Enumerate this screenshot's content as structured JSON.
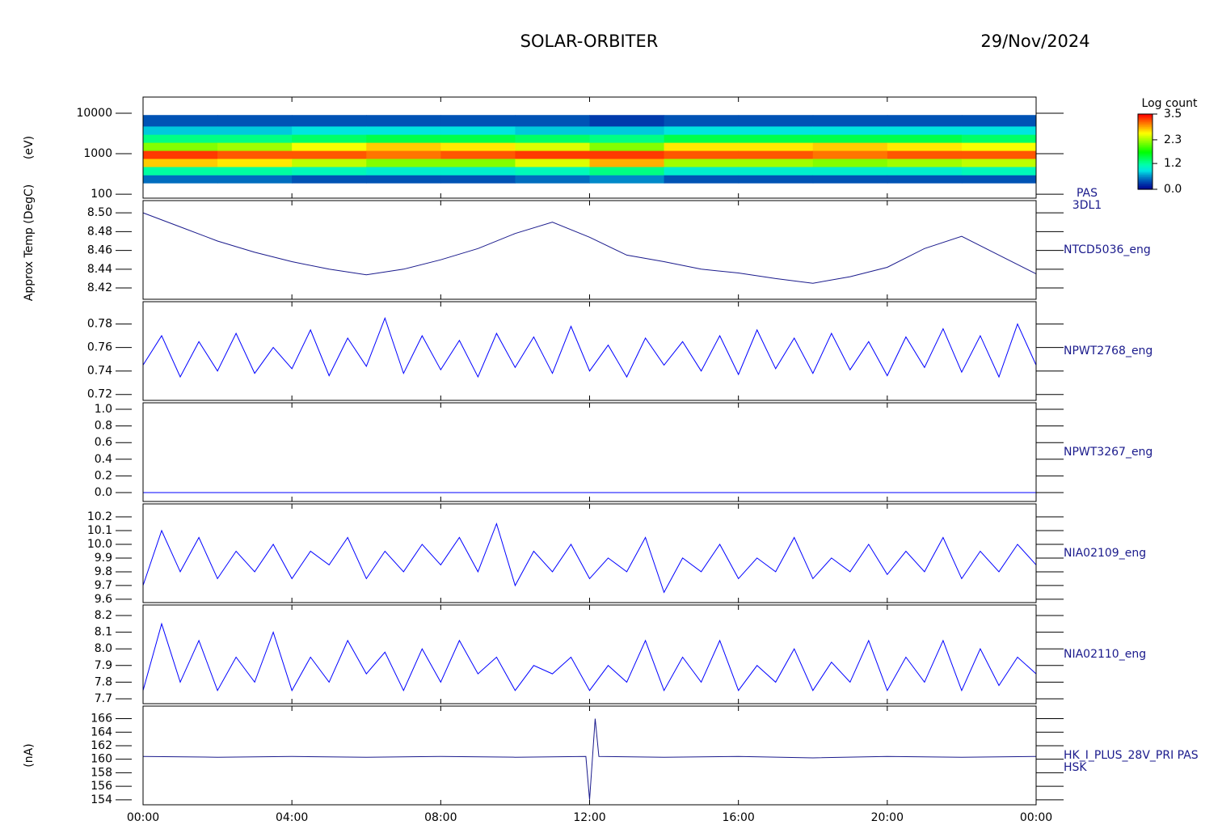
{
  "header": {
    "title": "SOLAR-ORBITER",
    "date": "29/Nov/2024"
  },
  "chart_data": [
    {
      "type": "heatmap",
      "log": true,
      "ylabel": "(eV)",
      "labels": [
        "PAS",
        "3DL1"
      ],
      "ylim": [
        80,
        25000
      ],
      "yticks": [
        100,
        1000,
        10000
      ],
      "time_bins": [
        0,
        2,
        4,
        6,
        8,
        10,
        12,
        14,
        16,
        18,
        20,
        22,
        24
      ],
      "energy_bins": [
        190,
        300,
        480,
        760,
        1200,
        1900,
        3000,
        4800,
        9000
      ],
      "values": [
        [
          0.5,
          1.2,
          2.8,
          3.3,
          2.2,
          1.3,
          0.8,
          0.4
        ],
        [
          0.5,
          1.2,
          2.7,
          3.2,
          2.3,
          1.3,
          0.8,
          0.4
        ],
        [
          0.4,
          1.1,
          2.4,
          3.2,
          2.6,
          1.4,
          0.9,
          0.4
        ],
        [
          0.4,
          1.0,
          2.2,
          3.1,
          2.8,
          1.5,
          0.9,
          0.4
        ],
        [
          0.4,
          1.0,
          2.2,
          3.2,
          2.7,
          1.5,
          0.9,
          0.4
        ],
        [
          0.5,
          1.1,
          2.5,
          3.3,
          2.5,
          1.4,
          0.8,
          0.4
        ],
        [
          0.6,
          1.3,
          2.9,
          3.3,
          2.2,
          1.3,
          0.8,
          0.3
        ],
        [
          0.4,
          1.0,
          2.3,
          3.2,
          2.7,
          1.5,
          0.9,
          0.4
        ],
        [
          0.4,
          1.0,
          2.3,
          3.2,
          2.7,
          1.5,
          0.9,
          0.4
        ],
        [
          0.4,
          1.0,
          2.2,
          3.1,
          2.8,
          1.5,
          0.9,
          0.4
        ],
        [
          0.4,
          1.0,
          2.3,
          3.2,
          2.7,
          1.5,
          0.9,
          0.4
        ],
        [
          0.4,
          1.1,
          2.4,
          3.2,
          2.6,
          1.4,
          0.9,
          0.4
        ]
      ],
      "colorbar_label": "Log count",
      "clim": [
        0,
        3.5
      ],
      "cticks": [
        {
          "value": 0,
          "label": "0.0"
        },
        1.2,
        2.3,
        3.5
      ]
    },
    {
      "type": "line",
      "ylabel": "Approx Temp (DegC)",
      "labels": [
        "NTCD5036_eng"
      ],
      "color": "#1a1a8c",
      "ylim": [
        8.408,
        8.513
      ],
      "yticks": [
        8.42,
        8.44,
        8.46,
        8.48,
        {
          "value": 8.5,
          "label": "8.50"
        }
      ],
      "x": [
        0,
        1,
        2,
        3,
        4,
        5,
        6,
        7,
        8,
        9,
        10,
        11,
        12,
        13,
        14,
        15,
        16,
        17,
        18,
        19,
        20,
        21,
        22,
        23,
        24
      ],
      "values": [
        8.5,
        8.485,
        8.47,
        8.458,
        8.448,
        8.44,
        8.434,
        8.44,
        8.45,
        8.462,
        8.478,
        8.49,
        8.474,
        8.455,
        8.448,
        8.44,
        8.436,
        8.43,
        8.425,
        8.432,
        8.442,
        8.462,
        8.475,
        8.455,
        8.435
      ]
    },
    {
      "type": "line",
      "labels": [
        "NPWT2768_eng"
      ],
      "color": "#0000ff",
      "ylim": [
        0.715,
        0.799
      ],
      "yticks": [
        0.72,
        0.74,
        0.76,
        0.78
      ],
      "x": [
        0,
        0.5,
        1,
        1.5,
        2,
        2.5,
        3,
        3.5,
        4,
        4.5,
        5,
        5.5,
        6,
        6.5,
        7,
        7.5,
        8,
        8.5,
        9,
        9.5,
        10,
        10.5,
        11,
        11.5,
        12,
        12.5,
        13,
        13.5,
        14,
        14.5,
        15,
        15.5,
        16,
        16.5,
        17,
        17.5,
        18,
        18.5,
        19,
        19.5,
        20,
        20.5,
        21,
        21.5,
        22,
        22.5,
        23,
        23.5,
        24
      ],
      "values": [
        0.745,
        0.77,
        0.735,
        0.765,
        0.74,
        0.772,
        0.738,
        0.76,
        0.742,
        0.775,
        0.736,
        0.768,
        0.744,
        0.785,
        0.738,
        0.77,
        0.741,
        0.766,
        0.735,
        0.772,
        0.743,
        0.769,
        0.738,
        0.778,
        0.74,
        0.762,
        0.735,
        0.768,
        0.745,
        0.765,
        0.74,
        0.77,
        0.737,
        0.775,
        0.742,
        0.768,
        0.738,
        0.772,
        0.741,
        0.765,
        0.736,
        0.769,
        0.743,
        0.776,
        0.739,
        0.77,
        0.735,
        0.78,
        0.745
      ]
    },
    {
      "type": "line",
      "labels": [
        "NPWT3267_eng"
      ],
      "color": "#0000ff",
      "ylim": [
        -0.107,
        1.078
      ],
      "yticks": [
        {
          "value": 0,
          "label": "0.0"
        },
        0.2,
        0.4,
        0.6,
        0.8,
        {
          "value": 1,
          "label": "1.0"
        }
      ],
      "x": [
        0,
        24
      ],
      "values": [
        0,
        0
      ]
    },
    {
      "type": "line",
      "labels": [
        "NIA02109_eng"
      ],
      "color": "#0000ff",
      "ylim": [
        9.576,
        10.294
      ],
      "yticks": [
        9.6,
        9.7,
        9.8,
        9.9,
        {
          "value": 10,
          "label": "10.0"
        },
        10.1,
        10.2
      ],
      "x": [
        0,
        0.5,
        1,
        1.5,
        2,
        2.5,
        3,
        3.5,
        4,
        4.5,
        5,
        5.5,
        6,
        6.5,
        7,
        7.5,
        8,
        8.5,
        9,
        9.5,
        10,
        10.5,
        11,
        11.5,
        12,
        12.5,
        13,
        13.5,
        14,
        14.5,
        15,
        15.5,
        16,
        16.5,
        17,
        17.5,
        18,
        18.5,
        19,
        19.5,
        20,
        20.5,
        21,
        21.5,
        22,
        22.5,
        23,
        23.5,
        24
      ],
      "values": [
        9.7,
        10.1,
        9.8,
        10.05,
        9.75,
        9.95,
        9.8,
        10.0,
        9.75,
        9.95,
        9.85,
        10.05,
        9.75,
        9.95,
        9.8,
        10.0,
        9.85,
        10.05,
        9.8,
        10.15,
        9.7,
        9.95,
        9.8,
        10.0,
        9.75,
        9.9,
        9.8,
        10.05,
        9.65,
        9.9,
        9.8,
        10.0,
        9.75,
        9.9,
        9.8,
        10.05,
        9.75,
        9.9,
        9.8,
        10.0,
        9.78,
        9.95,
        9.8,
        10.05,
        9.75,
        9.95,
        9.8,
        10.0,
        9.85
      ]
    },
    {
      "type": "line",
      "labels": [
        "NIA02110_eng"
      ],
      "color": "#0000ff",
      "ylim": [
        7.671,
        8.263
      ],
      "yticks": [
        7.7,
        7.8,
        7.9,
        {
          "value": 8,
          "label": "8.0"
        },
        8.1,
        8.2
      ],
      "x": [
        0,
        0.5,
        1,
        1.5,
        2,
        2.5,
        3,
        3.5,
        4,
        4.5,
        5,
        5.5,
        6,
        6.5,
        7,
        7.5,
        8,
        8.5,
        9,
        9.5,
        10,
        10.5,
        11,
        11.5,
        12,
        12.5,
        13,
        13.5,
        14,
        14.5,
        15,
        15.5,
        16,
        16.5,
        17,
        17.5,
        18,
        18.5,
        19,
        19.5,
        20,
        20.5,
        21,
        21.5,
        22,
        22.5,
        23,
        23.5,
        24
      ],
      "values": [
        7.75,
        8.15,
        7.8,
        8.05,
        7.75,
        7.95,
        7.8,
        8.1,
        7.75,
        7.95,
        7.8,
        8.05,
        7.85,
        7.98,
        7.75,
        8.0,
        7.8,
        8.05,
        7.85,
        7.95,
        7.75,
        7.9,
        7.85,
        7.95,
        7.75,
        7.9,
        7.8,
        8.05,
        7.75,
        7.95,
        7.8,
        8.05,
        7.75,
        7.9,
        7.8,
        8.0,
        7.75,
        7.92,
        7.8,
        8.05,
        7.75,
        7.95,
        7.8,
        8.05,
        7.75,
        8.0,
        7.78,
        7.95,
        7.85
      ]
    },
    {
      "type": "line",
      "ylabel": "(nA)",
      "labels": [
        "HK_I_PLUS_28V_PRI PAS",
        "HSK"
      ],
      "color": "#1a1a8c",
      "ylim": [
        153.26,
        167.86
      ],
      "yticks": [
        154,
        156,
        158,
        160,
        162,
        164,
        166
      ],
      "x": [
        0,
        2,
        4,
        6,
        8,
        10,
        11.9,
        12.0,
        12.05,
        12.15,
        12.25,
        14,
        16,
        18,
        20,
        22,
        24
      ],
      "values": [
        160.4,
        160.3,
        160.4,
        160.3,
        160.4,
        160.3,
        160.4,
        154.0,
        158.0,
        166.0,
        160.4,
        160.3,
        160.4,
        160.2,
        160.4,
        160.3,
        160.4
      ],
      "xlim": [
        0,
        24
      ],
      "xticks": [
        {
          "value": 0,
          "label": "00:00"
        },
        {
          "value": 4,
          "label": "04:00"
        },
        {
          "value": 8,
          "label": "08:00"
        },
        {
          "value": 12,
          "label": "12:00"
        },
        {
          "value": 16,
          "label": "16:00"
        },
        {
          "value": 20,
          "label": "20:00"
        },
        {
          "value": 24,
          "label": "00:00"
        }
      ]
    }
  ]
}
